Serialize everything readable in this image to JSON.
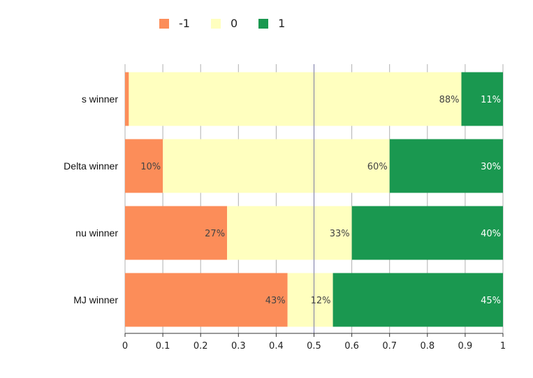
{
  "chart_data": {
    "type": "bar",
    "orientation": "horizontal",
    "stacked": true,
    "categories": [
      "s winner",
      "Delta winner",
      "nu winner",
      "MJ winner"
    ],
    "series": [
      {
        "name": "-1",
        "color": "#fc8d59",
        "values": [
          0.01,
          0.1,
          0.27,
          0.43
        ],
        "labels": [
          "",
          "10%",
          "27%",
          "43%"
        ]
      },
      {
        "name": "0",
        "color": "#ffffbf",
        "values": [
          0.88,
          0.6,
          0.33,
          0.12
        ],
        "labels": [
          "88%",
          "60%",
          "33%",
          "12%"
        ]
      },
      {
        "name": "1",
        "color": "#1a9850",
        "values": [
          0.11,
          0.3,
          0.4,
          0.45
        ],
        "labels": [
          "11%",
          "30%",
          "40%",
          "45%"
        ]
      }
    ],
    "xlim": [
      0,
      1
    ],
    "xticks": [
      "0",
      "0.1",
      "0.2",
      "0.3",
      "0.4",
      "0.5",
      "0.6",
      "0.7",
      "0.8",
      "0.9",
      "1"
    ],
    "reference_line": 0.5,
    "grid": true,
    "legend_position": "top"
  }
}
